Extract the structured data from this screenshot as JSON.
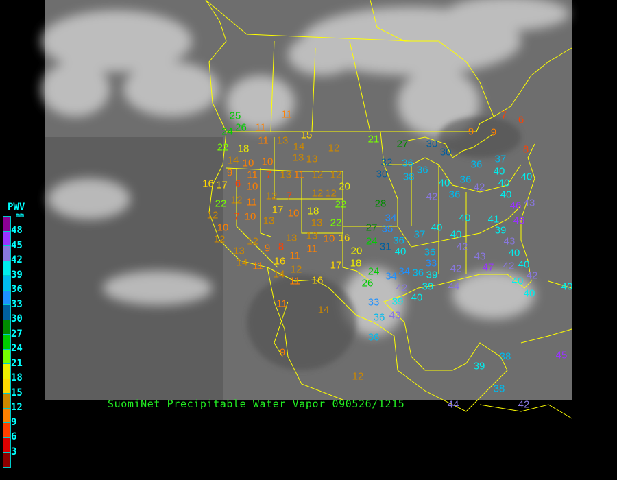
{
  "caption": "SuomiNet Precipitable Water Vapor 090526/1215",
  "legend": {
    "title": "PWV",
    "unit": "mm",
    "ticks": [
      "48",
      "45",
      "42",
      "39",
      "36",
      "33",
      "30",
      "27",
      "24",
      "21",
      "18",
      "15",
      "12",
      "9",
      "6",
      "3"
    ],
    "colors": [
      "#8b0094",
      "#9933ff",
      "#8877dd",
      "#00eeee",
      "#00bbee",
      "#1e90ff",
      "#005f9f",
      "#008b00",
      "#00cc00",
      "#77ff00",
      "#eeee00",
      "#ffd700",
      "#cc8800",
      "#ff8000",
      "#ff4000",
      "#dd0000",
      "#8b0000"
    ]
  },
  "colors": {
    "caption": "#22ee22",
    "legend_text": "#00ffff",
    "boundaries": "#ffff00",
    "background": "#000000"
  },
  "stations": [
    25,
    26,
    24,
    11,
    11,
    15,
    11,
    13,
    14,
    12,
    21,
    27,
    30,
    30,
    9,
    9,
    7,
    6,
    8,
    22,
    18,
    14,
    10,
    10,
    9,
    11,
    7,
    13,
    13,
    13,
    11,
    12,
    12,
    20,
    12,
    12,
    16,
    17,
    6,
    10,
    12,
    7,
    22,
    22,
    12,
    11,
    12,
    7,
    10,
    13,
    17,
    10,
    18,
    13,
    22,
    28,
    32,
    30,
    36,
    38,
    36,
    40,
    36,
    42,
    36,
    37,
    40,
    40,
    40,
    40,
    46,
    43,
    36,
    42,
    40,
    41,
    39,
    46,
    43,
    40,
    37,
    40,
    42,
    43,
    40,
    27,
    34,
    35,
    24,
    31,
    36,
    40,
    20,
    16,
    10,
    13,
    13,
    12,
    9,
    8,
    10,
    12,
    13,
    14,
    11,
    16,
    11,
    11,
    17,
    18,
    24,
    26,
    34,
    42,
    34,
    36,
    36,
    33,
    39,
    42,
    44,
    47,
    42,
    40,
    42,
    40,
    40,
    39,
    40,
    33,
    39,
    36,
    43,
    36,
    14,
    12,
    11,
    16,
    11,
    14,
    9,
    12,
    39,
    38,
    38,
    44,
    42,
    45,
    40
  ]
}
